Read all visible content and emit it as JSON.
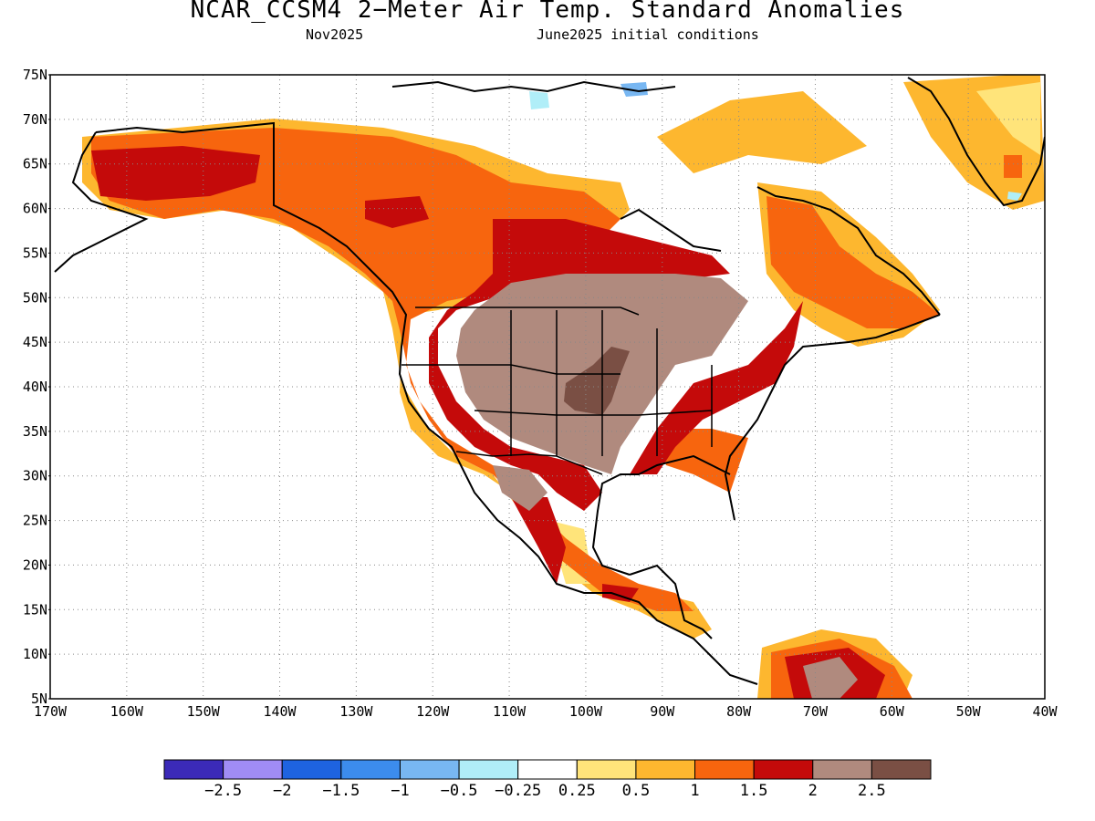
{
  "title": "NCAR_CCSM4 2−Meter Air Temp. Standard Anomalies",
  "subtitle_left": "Nov2025",
  "subtitle_right": "June2025 initial conditions",
  "map": {
    "lon_range": [
      -170,
      -40
    ],
    "lat_range": [
      5,
      75
    ],
    "lat_labels": [
      "75N",
      "70N",
      "65N",
      "60N",
      "55N",
      "50N",
      "45N",
      "40N",
      "35N",
      "30N",
      "25N",
      "20N",
      "15N",
      "10N",
      "5N"
    ],
    "lon_labels": [
      "170W",
      "160W",
      "150W",
      "140W",
      "130W",
      "120W",
      "110W",
      "100W",
      "90W",
      "80W",
      "70W",
      "60W",
      "50W",
      "40W"
    ],
    "grid": true
  },
  "colorbar": {
    "colors": [
      "#3b2ab8",
      "#a08cf5",
      "#1e63e0",
      "#3c8ced",
      "#78b7f2",
      "#b0eef8",
      "#ffffff",
      "#ffe47a",
      "#fdb72f",
      "#f7650e",
      "#c40a0a",
      "#b08a7e",
      "#7a4f44"
    ],
    "labels": [
      "−2.5",
      "−2",
      "−1.5",
      "−1",
      "−0.5",
      "−0.25",
      "0.25",
      "0.5",
      "1",
      "1.5",
      "2",
      "2.5"
    ]
  }
}
